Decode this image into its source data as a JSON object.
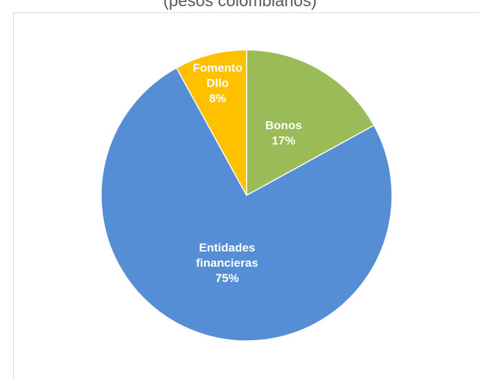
{
  "chart_data": {
    "type": "pie",
    "title": "(pesos colombianos)",
    "start_angle_deg": 0,
    "direction": "clockwise",
    "slices": [
      {
        "label_lines": [
          "Bonos"
        ],
        "value": 17,
        "value_label": "17%",
        "color": "#9bbb59"
      },
      {
        "label_lines": [
          "Entidades",
          "financieras"
        ],
        "value": 75,
        "value_label": "75%",
        "color": "#558ed5"
      },
      {
        "label_lines": [
          "Fomento",
          "Dllo"
        ],
        "value": 8,
        "value_label": "8%",
        "color": "#ffc000"
      }
    ],
    "slice_border_color": "#ffffff",
    "legend": "none"
  }
}
